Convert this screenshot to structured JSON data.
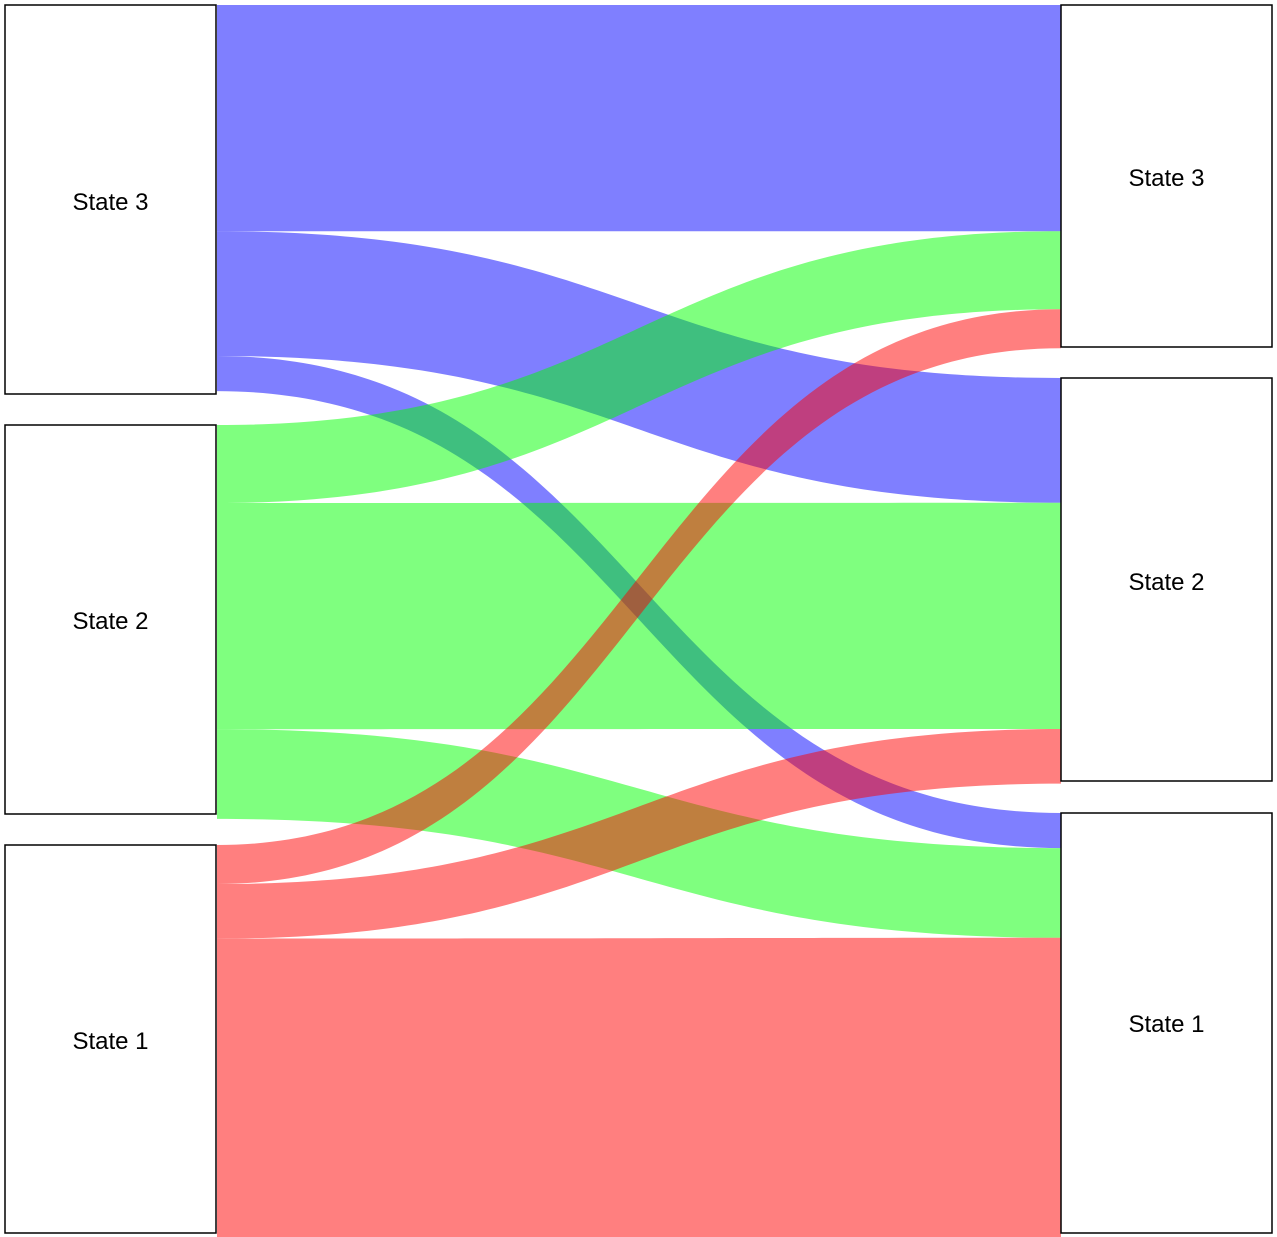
{
  "colors": {
    "state_1": "#ff0000",
    "state_2": "#00ff00",
    "state_3": "#0000ff",
    "flow_opacity": 0.5
  },
  "chart_data": {
    "type": "sankey",
    "title": "",
    "left_nodes": [
      {
        "id": "L3",
        "label": "State 3",
        "color_key": "state_3"
      },
      {
        "id": "L2",
        "label": "State 2",
        "color_key": "state_2"
      },
      {
        "id": "L1",
        "label": "State 1",
        "color_key": "state_1"
      }
    ],
    "right_nodes": [
      {
        "id": "R3",
        "label": "State 3"
      },
      {
        "id": "R2",
        "label": "State 2"
      },
      {
        "id": "R1",
        "label": "State 1"
      }
    ],
    "flows": [
      {
        "from": "L3",
        "to": "R3",
        "value": 29
      },
      {
        "from": "L3",
        "to": "R2",
        "value": 16
      },
      {
        "from": "L3",
        "to": "R1",
        "value": 4.5
      },
      {
        "from": "L2",
        "to": "R3",
        "value": 10
      },
      {
        "from": "L2",
        "to": "R2",
        "value": 29
      },
      {
        "from": "L2",
        "to": "R1",
        "value": 11.5
      },
      {
        "from": "L1",
        "to": "R3",
        "value": 5
      },
      {
        "from": "L1",
        "to": "R2",
        "value": 7
      },
      {
        "from": "L1",
        "to": "R1",
        "value": 38.5
      }
    ]
  }
}
